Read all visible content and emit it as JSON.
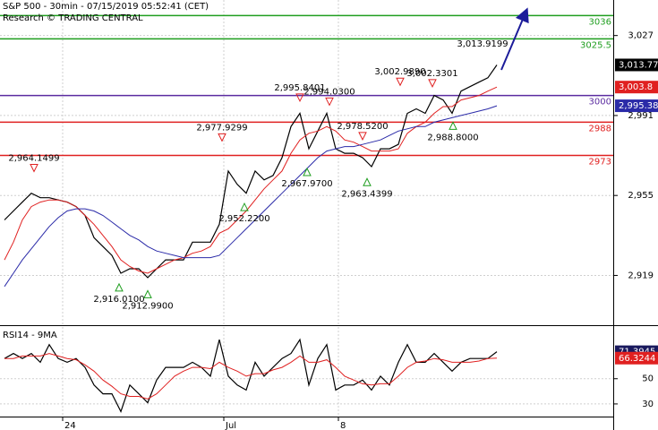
{
  "chart_data": [
    {
      "type": "line",
      "title": "S&P 500 - 30min - 07/15/2019 05:52:41 (CET)",
      "subtitle": "Research © TRADING CENTRAL",
      "xlim": [
        -0.5,
        68
      ],
      "xticks": [
        {
          "value": 6.5,
          "label": "24"
        },
        {
          "value": 24.5,
          "label": "Jul"
        },
        {
          "value": 37.3,
          "label": "8"
        }
      ],
      "ylim": [
        2897,
        3043
      ],
      "yticks": [
        {
          "value": 3027,
          "label": "3,027"
        },
        {
          "value": 2991,
          "label": "2,991"
        },
        {
          "value": 2955,
          "label": "2,955"
        },
        {
          "value": 2919,
          "label": "2,919"
        }
      ],
      "grid": true,
      "series": [
        {
          "color": "#000000",
          "values": [
            2944,
            2948,
            2952,
            2956,
            2954,
            2954,
            2953,
            2952,
            2950,
            2946,
            2936,
            2932,
            2928,
            2920,
            2922,
            2922,
            2918,
            2922,
            2926,
            2926,
            2926,
            2934,
            2934,
            2934,
            2942,
            2966,
            2960,
            2956,
            2966,
            2962,
            2964,
            2972,
            2986,
            2992,
            2976,
            2984,
            2992,
            2976,
            2974,
            2974,
            2972,
            2968,
            2976,
            2976,
            2978,
            2992,
            2994,
            2992,
            3000,
            2998,
            2992,
            3002,
            3004,
            3006,
            3008,
            3013.77
          ]
        },
        {
          "color": "#e02020",
          "values": [
            2926,
            2934,
            2944,
            2950,
            2952,
            2953,
            2953,
            2952,
            2950,
            2946,
            2942,
            2937,
            2932,
            2926,
            2923,
            2921,
            2920,
            2922,
            2924,
            2926,
            2927,
            2929,
            2930,
            2932,
            2938,
            2940,
            2944,
            2948,
            2953,
            2958,
            2962,
            2966,
            2974,
            2980,
            2983,
            2984,
            2986,
            2984,
            2980,
            2979,
            2977,
            2975,
            2975,
            2975,
            2976,
            2983,
            2986,
            2988,
            2992,
            2995,
            2995,
            2998,
            2999,
            3000,
            3002,
            3003.8
          ]
        },
        {
          "color": "#2a2aa8",
          "values": [
            2914,
            2920,
            2926,
            2931,
            2936,
            2941,
            2945,
            2948,
            2949,
            2949,
            2948,
            2946,
            2943,
            2940,
            2937,
            2935,
            2932,
            2930,
            2929,
            2928,
            2927,
            2927,
            2927,
            2927,
            2928,
            2932,
            2936,
            2940,
            2944,
            2948,
            2952,
            2956,
            2960,
            2964,
            2968,
            2972,
            2975,
            2976,
            2977,
            2977,
            2978,
            2979,
            2980,
            2982,
            2984,
            2985,
            2986,
            2986,
            2988,
            2989,
            2990,
            2991,
            2992,
            2993,
            2994,
            2995.38
          ]
        }
      ],
      "levels": [
        {
          "value": 3036,
          "color": "#1f9e1f"
        },
        {
          "value": 3025.5,
          "color": "#1f9e1f"
        },
        {
          "value": 3000,
          "color": "#5b2ca0"
        },
        {
          "value": 2988,
          "color": "#e02020"
        },
        {
          "value": 2973,
          "color": "#e02020"
        }
      ],
      "peaks": [
        {
          "x": 3.3,
          "value": 2964.1499,
          "label": "2,964.1499"
        },
        {
          "x": 24.3,
          "value": 2977.9299,
          "label": "2,977.9299"
        },
        {
          "x": 33,
          "value": 2995.8401,
          "label": "2,995.8401"
        },
        {
          "x": 36.3,
          "value": 2994.03,
          "label": "2,994.0300"
        },
        {
          "x": 40,
          "value": 2978.52,
          "label": "2,978.5200"
        },
        {
          "x": 44.2,
          "value": 3002.989,
          "label": "3,002.9890"
        },
        {
          "x": 47.8,
          "value": 3002.3301,
          "label": "3,002.3301"
        }
      ],
      "troughs": [
        {
          "x": 12.8,
          "value": 2916.01,
          "label": "2,916.0100"
        },
        {
          "x": 16,
          "value": 2912.99,
          "label": "2,912.9900"
        },
        {
          "x": 26.8,
          "value": 2952.22,
          "label": "2,952.2200"
        },
        {
          "x": 33.8,
          "value": 2967.97,
          "label": "2,967.9700"
        },
        {
          "x": 40.5,
          "value": 2963.4399,
          "label": "2,963.4399"
        },
        {
          "x": 50.1,
          "value": 2988.8,
          "label": "2,988.8000"
        }
      ],
      "target": {
        "x": 53.4,
        "value": 3013.9199,
        "label": "3,013.9199"
      },
      "last_labels": [
        {
          "value": 3013.77,
          "label": "3,013.77",
          "color": "#000000"
        },
        {
          "value": 3003.8,
          "label": "3,003.8",
          "color": "#e02020"
        },
        {
          "value": 2995.38,
          "label": "2,995.38",
          "color": "#2a2aa8"
        }
      ]
    },
    {
      "type": "line",
      "title": "RSI14 - 9MA",
      "ylim": [
        20,
        91
      ],
      "yticks": [
        30,
        50
      ],
      "grid": true,
      "series": [
        {
          "color": "#000000",
          "values": [
            66,
            70,
            66,
            70,
            63,
            77,
            66,
            63,
            66,
            59,
            45,
            38,
            38,
            24,
            45,
            38,
            31,
            49,
            59,
            59,
            59,
            63,
            59,
            52,
            81,
            52,
            45,
            41,
            63,
            52,
            59,
            66,
            70,
            81,
            45,
            66,
            77,
            41,
            45,
            45,
            49,
            41,
            52,
            45,
            63,
            77,
            63,
            63,
            70,
            63,
            56,
            63,
            66,
            66,
            66,
            71.3945
          ]
        },
        {
          "color": "#e02020",
          "values": [
            66,
            66,
            68,
            68,
            68,
            70,
            68,
            66,
            65,
            61,
            56,
            49,
            44,
            38,
            36,
            36,
            34,
            38,
            45,
            52,
            56,
            59,
            59,
            58,
            63,
            59,
            56,
            52,
            54,
            54,
            57,
            59,
            63,
            68,
            63,
            63,
            65,
            59,
            52,
            49,
            46,
            45,
            46,
            46,
            52,
            59,
            63,
            64,
            66,
            65,
            63,
            63,
            63,
            64,
            66,
            66.3244
          ]
        }
      ],
      "last_labels": [
        {
          "value": 71.3945,
          "label": "71.3945",
          "color": "#1a1a5e"
        },
        {
          "value": 66.3244,
          "label": "66.3244",
          "color": "#e02020"
        }
      ]
    }
  ]
}
